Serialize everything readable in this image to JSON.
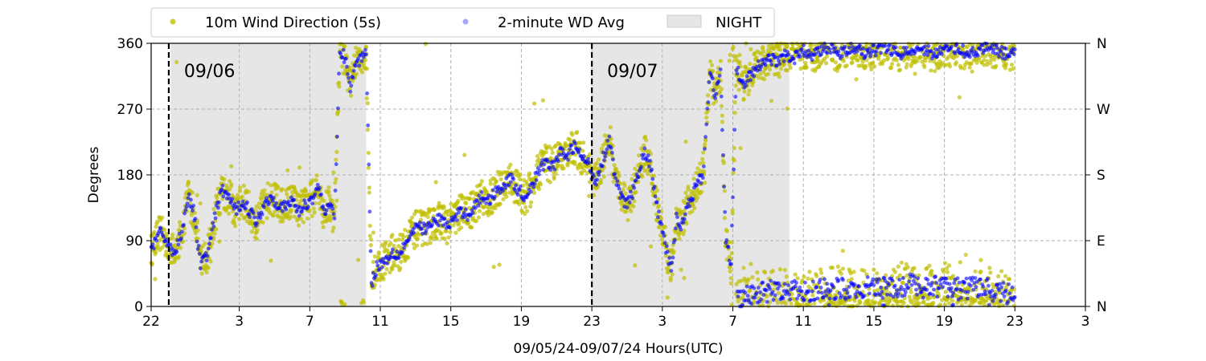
{
  "chart_data": {
    "type": "scatter",
    "xlabel": "09/05/24-09/07/24  Hours(UTC)",
    "ylabel": "Degrees",
    "x_range_hours": [
      22,
      75
    ],
    "xticks": [
      {
        "hour": 22,
        "label": "22"
      },
      {
        "hour": 27,
        "label": "3"
      },
      {
        "hour": 31,
        "label": "7"
      },
      {
        "hour": 35,
        "label": "11"
      },
      {
        "hour": 39,
        "label": "15"
      },
      {
        "hour": 43,
        "label": "19"
      },
      {
        "hour": 47,
        "label": "23"
      },
      {
        "hour": 51,
        "label": "3"
      },
      {
        "hour": 55,
        "label": "7"
      },
      {
        "hour": 59,
        "label": "11"
      },
      {
        "hour": 63,
        "label": "15"
      },
      {
        "hour": 67,
        "label": "19"
      },
      {
        "hour": 71,
        "label": "23"
      },
      {
        "hour": 75,
        "label": "3"
      }
    ],
    "ylim": [
      0,
      360
    ],
    "yticks": [
      0,
      90,
      180,
      270,
      360
    ],
    "right_axis_labels": [
      {
        "value": 0,
        "label": "N"
      },
      {
        "value": 90,
        "label": "E"
      },
      {
        "value": 180,
        "label": "S"
      },
      {
        "value": 270,
        "label": "W"
      },
      {
        "value": 360,
        "label": "N"
      }
    ],
    "grid": true,
    "legend_position": "top-left, above plot",
    "legend": [
      {
        "label": "10m Wind Direction (5s)",
        "color": "#bfbf00",
        "marker": "dot"
      },
      {
        "label": "2-minute WD Avg",
        "color": "#0000ff",
        "marker": "dot"
      },
      {
        "label": "NIGHT",
        "color": "#e6e6e6",
        "marker": "patch"
      }
    ],
    "night_periods_hours": [
      [
        23.1,
        34.2
      ],
      [
        47.0,
        58.2
      ]
    ],
    "day_boundaries": [
      {
        "hour": 23.0,
        "label": "09/06"
      },
      {
        "hour": 47.0,
        "label": "09/07"
      }
    ],
    "series": [
      {
        "name": "2-minute WD Avg",
        "color": "#0000ff",
        "trace": [
          [
            22.0,
            80
          ],
          [
            22.5,
            100
          ],
          [
            22.9,
            90
          ],
          [
            23.3,
            70
          ],
          [
            23.7,
            100
          ],
          [
            24.1,
            150
          ],
          [
            24.4,
            130
          ],
          [
            24.8,
            60
          ],
          [
            25.2,
            70
          ],
          [
            25.6,
            120
          ],
          [
            26.0,
            160
          ],
          [
            26.4,
            150
          ],
          [
            26.8,
            130
          ],
          [
            27.2,
            145
          ],
          [
            27.6,
            130
          ],
          [
            28.0,
            115
          ],
          [
            28.4,
            140
          ],
          [
            28.8,
            150
          ],
          [
            29.2,
            140
          ],
          [
            29.6,
            135
          ],
          [
            30.0,
            145
          ],
          [
            30.4,
            130
          ],
          [
            30.8,
            140
          ],
          [
            31.2,
            150
          ],
          [
            31.5,
            165
          ],
          [
            31.8,
            130
          ],
          [
            32.1,
            140
          ],
          [
            32.4,
            120
          ],
          [
            32.7,
            350
          ],
          [
            33.0,
            340
          ],
          [
            33.3,
            300
          ],
          [
            33.6,
            330
          ],
          [
            33.9,
            340
          ],
          [
            34.2,
            350
          ],
          [
            34.5,
            30
          ],
          [
            34.8,
            55
          ],
          [
            35.1,
            60
          ],
          [
            35.4,
            65
          ],
          [
            35.7,
            75
          ],
          [
            36.0,
            70
          ],
          [
            36.4,
            85
          ],
          [
            36.8,
            100
          ],
          [
            37.2,
            110
          ],
          [
            37.6,
            105
          ],
          [
            38.0,
            115
          ],
          [
            38.4,
            120
          ],
          [
            38.8,
            110
          ],
          [
            39.2,
            120
          ],
          [
            39.6,
            130
          ],
          [
            40.0,
            125
          ],
          [
            40.4,
            140
          ],
          [
            40.8,
            150
          ],
          [
            41.2,
            145
          ],
          [
            41.6,
            160
          ],
          [
            42.0,
            165
          ],
          [
            42.4,
            175
          ],
          [
            42.8,
            160
          ],
          [
            43.2,
            150
          ],
          [
            43.6,
            165
          ],
          [
            44.0,
            185
          ],
          [
            44.4,
            200
          ],
          [
            44.8,
            190
          ],
          [
            45.2,
            210
          ],
          [
            45.6,
            205
          ],
          [
            46.0,
            220
          ],
          [
            46.4,
            205
          ],
          [
            46.8,
            195
          ],
          [
            47.2,
            170
          ],
          [
            47.6,
            200
          ],
          [
            48.0,
            230
          ],
          [
            48.3,
            180
          ],
          [
            48.6,
            150
          ],
          [
            49.0,
            140
          ],
          [
            49.4,
            160
          ],
          [
            49.7,
            190
          ],
          [
            50.0,
            210
          ],
          [
            50.3,
            195
          ],
          [
            50.6,
            150
          ],
          [
            50.9,
            110
          ],
          [
            51.2,
            80
          ],
          [
            51.5,
            50
          ],
          [
            51.8,
            120
          ],
          [
            52.1,
            110
          ],
          [
            52.4,
            140
          ],
          [
            52.7,
            150
          ],
          [
            53.0,
            170
          ],
          [
            53.3,
            180
          ],
          [
            53.7,
            320
          ],
          [
            54.0,
            290
          ],
          [
            54.3,
            320
          ],
          [
            54.6,
            90
          ],
          [
            54.9,
            60
          ],
          [
            55.2,
            330
          ],
          [
            55.5,
            300
          ],
          [
            55.8,
            310
          ],
          [
            56.1,
            320
          ],
          [
            56.5,
            330
          ],
          [
            57.0,
            340
          ],
          [
            57.5,
            335
          ],
          [
            58.0,
            345
          ],
          [
            58.5,
            340
          ],
          [
            59.0,
            350
          ],
          [
            59.5,
            345
          ],
          [
            60.0,
            350
          ],
          [
            60.5,
            355
          ],
          [
            61.0,
            345
          ],
          [
            61.5,
            350
          ],
          [
            62.0,
            355
          ],
          [
            62.5,
            345
          ],
          [
            63.0,
            350
          ],
          [
            63.5,
            355
          ],
          [
            64.0,
            350
          ],
          [
            64.5,
            345
          ],
          [
            65.0,
            350
          ],
          [
            65.5,
            355
          ],
          [
            66.0,
            350
          ],
          [
            66.5,
            345
          ],
          [
            67.0,
            350
          ],
          [
            67.5,
            355
          ],
          [
            68.0,
            350
          ],
          [
            68.5,
            345
          ],
          [
            69.0,
            350
          ],
          [
            69.5,
            355
          ],
          [
            70.0,
            350
          ],
          [
            70.5,
            345
          ],
          [
            71.0,
            350
          ]
        ],
        "trace_low_band": [
          [
            55.0,
            5
          ],
          [
            56.0,
            15
          ],
          [
            57.0,
            20
          ],
          [
            58.0,
            25
          ],
          [
            59.0,
            18
          ],
          [
            60.0,
            22
          ],
          [
            61.0,
            25
          ],
          [
            62.0,
            20
          ],
          [
            63.0,
            28
          ],
          [
            64.0,
            25
          ],
          [
            65.0,
            30
          ],
          [
            66.0,
            25
          ],
          [
            67.0,
            30
          ],
          [
            68.0,
            22
          ],
          [
            69.0,
            28
          ],
          [
            70.0,
            20
          ],
          [
            71.0,
            15
          ]
        ]
      },
      {
        "name": "10m Wind Direction (5s)",
        "color": "#bfbf00",
        "spread_degrees": 25
      }
    ]
  }
}
